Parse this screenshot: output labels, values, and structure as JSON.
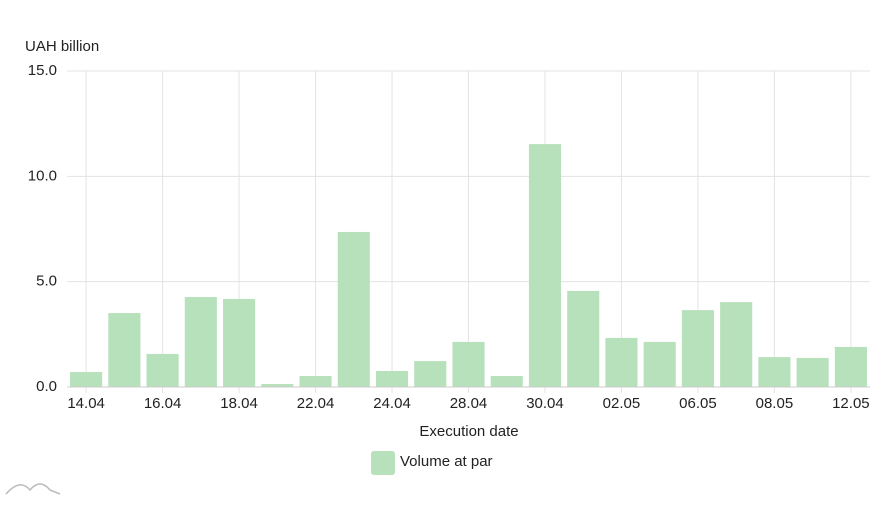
{
  "chart_data": {
    "type": "bar",
    "y_axis_label": "UAH billion",
    "x_axis_label": "Execution date",
    "categories": [
      "14.04",
      null,
      "16.04",
      null,
      "18.04",
      null,
      "22.04",
      null,
      "24.04",
      null,
      "28.04",
      null,
      "30.04",
      null,
      "02.05",
      null,
      "06.05",
      null,
      "08.05",
      null,
      "12.05"
    ],
    "series": [
      {
        "name": "Volume at par",
        "color": "#b7e1bb",
        "values": [
          0.71,
          3.51,
          1.57,
          4.27,
          4.18,
          0.14,
          0.52,
          7.36,
          0.76,
          1.23,
          2.14,
          0.52,
          11.53,
          4.56,
          2.33,
          2.14,
          3.65,
          4.03,
          1.42,
          1.38,
          1.9
        ]
      }
    ],
    "ylim": [
      0,
      15
    ],
    "yticks": [
      {
        "value": 0,
        "label": "0.0"
      },
      {
        "value": 5,
        "label": "5.0"
      },
      {
        "value": 10,
        "label": "10.0"
      },
      {
        "value": 15,
        "label": "15.0"
      }
    ],
    "grid": true
  }
}
